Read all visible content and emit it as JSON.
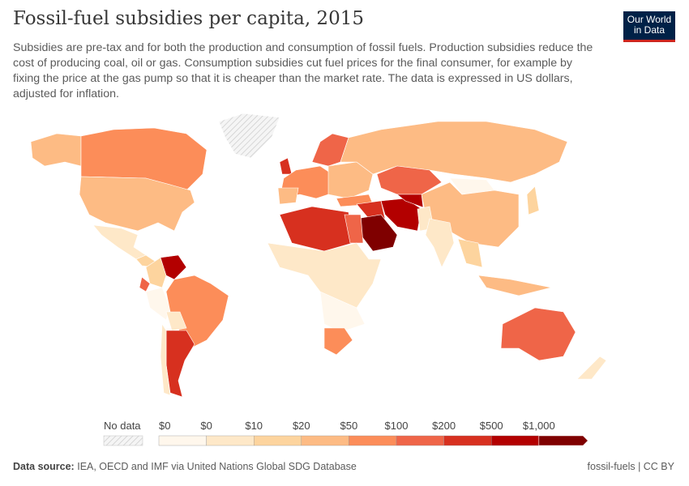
{
  "header": {
    "title": "Fossil-fuel subsidies per capita, 2015",
    "subtitle": "Subsidies are pre-tax and for both the production and consumption of fossil fuels. Production subsidies reduce the cost of producing coal, oil or gas. Consumption subsidies cut fuel prices for the final consumer, for example by fixing the price at the gas pump so that it is cheaper than the market rate. The data is expressed in US dollars, adjusted for inflation.",
    "logo": "Our World in Data"
  },
  "legend": {
    "no_data_label": "No data",
    "ticks": [
      "$0",
      "$0",
      "$10",
      "$20",
      "$50",
      "$100",
      "$200",
      "$500",
      "$1,000"
    ],
    "colors": [
      "#fff7ec",
      "#fee8c8",
      "#fdd49e",
      "#fdbb84",
      "#fc8d59",
      "#ef6548",
      "#d7301f",
      "#b30000",
      "#7f0000"
    ]
  },
  "map": {
    "type": "choropleth",
    "year": "2015",
    "projection": "world"
  },
  "footer": {
    "source_label": "Data source:",
    "source": "IEA, OECD and IMF via United Nations Global SDG Database",
    "license": "fossil-fuels | CC BY"
  }
}
